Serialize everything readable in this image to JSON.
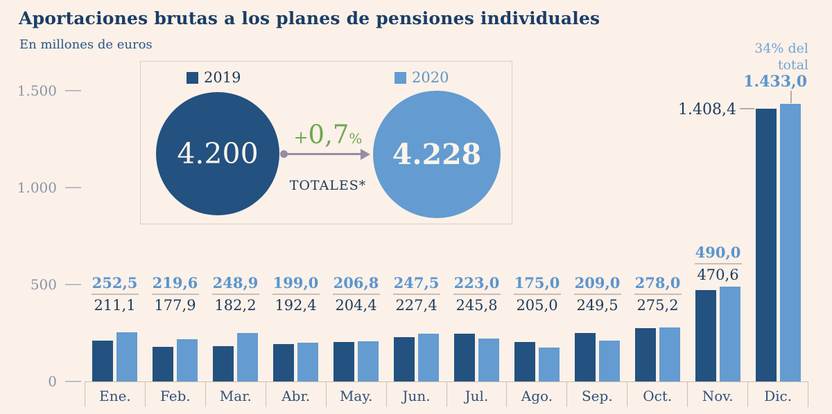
{
  "header": {
    "title": "Aportaciones brutas a los planes de pensiones individuales",
    "subtitle": "En millones de euros"
  },
  "totals_panel": {
    "legend_2019": "2019",
    "legend_2020": "2020",
    "total_2019": "4.200",
    "total_2020": "4.228",
    "change_plus": "+",
    "change_value": "0,7",
    "change_unit": "%",
    "label": "TOTALES*"
  },
  "chart_data": {
    "type": "bar",
    "title": "Aportaciones brutas a los planes de pensiones individuales",
    "ylabel": "En millones de euros",
    "ylim": [
      0,
      1500
    ],
    "grid": false,
    "legend_position": "top-panel",
    "y_ticks": [
      {
        "label": "1.500",
        "value": 1500
      },
      {
        "label": "1.000",
        "value": 1000
      },
      {
        "label": "500",
        "value": 500
      },
      {
        "label": "0",
        "value": 0
      }
    ],
    "categories": [
      "Ene.",
      "Feb.",
      "Mar.",
      "Abr.",
      "May.",
      "Jun.",
      "Jul.",
      "Ago.",
      "Sep.",
      "Oct.",
      "Nov.",
      "Dic."
    ],
    "series": [
      {
        "name": "2019",
        "color": "#235180",
        "values": [
          211.1,
          177.9,
          182.2,
          192.4,
          204.4,
          227.4,
          245.8,
          205.0,
          249.5,
          275.2,
          470.6,
          1408.4
        ]
      },
      {
        "name": "2020",
        "color": "#649BD1",
        "values": [
          252.5,
          219.6,
          248.9,
          199.0,
          206.8,
          247.5,
          223.0,
          175.0,
          209.0,
          278.0,
          490.0,
          1433.0
        ]
      }
    ],
    "value_labels": {
      "y2019": [
        "211,1",
        "177,9",
        "182,2",
        "192,4",
        "204,4",
        "227,4",
        "245,8",
        "205,0",
        "249,5",
        "275,2",
        "470,6",
        "1.408,4"
      ],
      "y2020": [
        "252,5",
        "219,6",
        "248,9",
        "199,0",
        "206,8",
        "247,5",
        "223,0",
        "175,0",
        "209,0",
        "278,0",
        "490,0",
        "1.433,0"
      ]
    },
    "label_layout": [
      "normal",
      "normal",
      "normal",
      "normal",
      "normal",
      "normal",
      "normal",
      "normal",
      "normal",
      "normal",
      "high",
      "callout"
    ],
    "dic_note": "34% del total",
    "totals": {
      "total_2019": 4200,
      "total_2020": 4228,
      "change_pct": 0.7
    }
  },
  "colors": {
    "background": "#FBF1E8",
    "bar_2019": "#235180",
    "bar_2020": "#649BD1",
    "title": "#1C3D67",
    "value_2019_text": "#1E3A5F",
    "value_2020_text": "#5B95CE",
    "change_green": "#6FA651",
    "arrow_gray": "#958DA3",
    "axis_line": "#CBBFAF"
  }
}
